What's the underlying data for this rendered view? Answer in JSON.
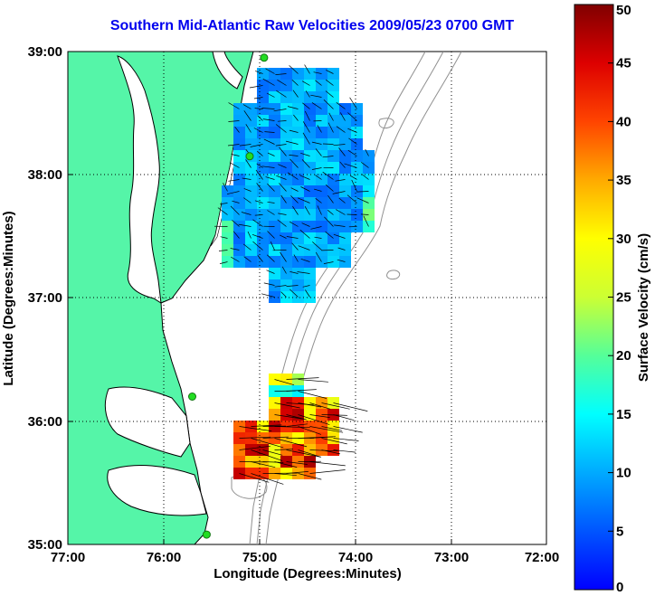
{
  "title": "Southern Mid-Atlantic Raw Velocities 2009/05/23 0700 GMT",
  "x_axis": {
    "label": "Longitude (Degrees:Minutes)",
    "ticks": [
      "77:00",
      "76:00",
      "75:00",
      "74:00",
      "73:00",
      "72:00"
    ]
  },
  "y_axis": {
    "label": "Latitude (Degrees:Minutes)",
    "ticks": [
      "39:00",
      "38:00",
      "37:00",
      "36:00",
      "35:00"
    ]
  },
  "colorbar": {
    "label": "Surface Velocity (cm/s)",
    "ticks": [
      "50",
      "45",
      "40",
      "35",
      "30",
      "25",
      "20",
      "15",
      "10",
      "5",
      "0"
    ],
    "min": 0,
    "max": 50,
    "colormap": "jet"
  },
  "colors": {
    "title": "#0000ee",
    "land": "#55f5a8",
    "coastline": "#000000",
    "bathymetry": "#909090",
    "station": "#22dd22"
  },
  "stations": [
    {
      "lon": 74.95,
      "lat": 38.95
    },
    {
      "lon": 75.1,
      "lat": 38.15
    },
    {
      "lon": 75.7,
      "lat": 36.2
    },
    {
      "lon": 75.55,
      "lat": 35.08
    }
  ],
  "velocity_regions": [
    {
      "name": "northern",
      "lon": [
        74.2,
        75.4
      ],
      "lat": [
        37.0,
        39.0
      ],
      "speed_cm_s": [
        5,
        20
      ]
    },
    {
      "name": "southern",
      "lon": [
        73.9,
        75.3
      ],
      "lat": [
        35.5,
        36.4
      ],
      "speed_cm_s": [
        15,
        50
      ]
    }
  ]
}
